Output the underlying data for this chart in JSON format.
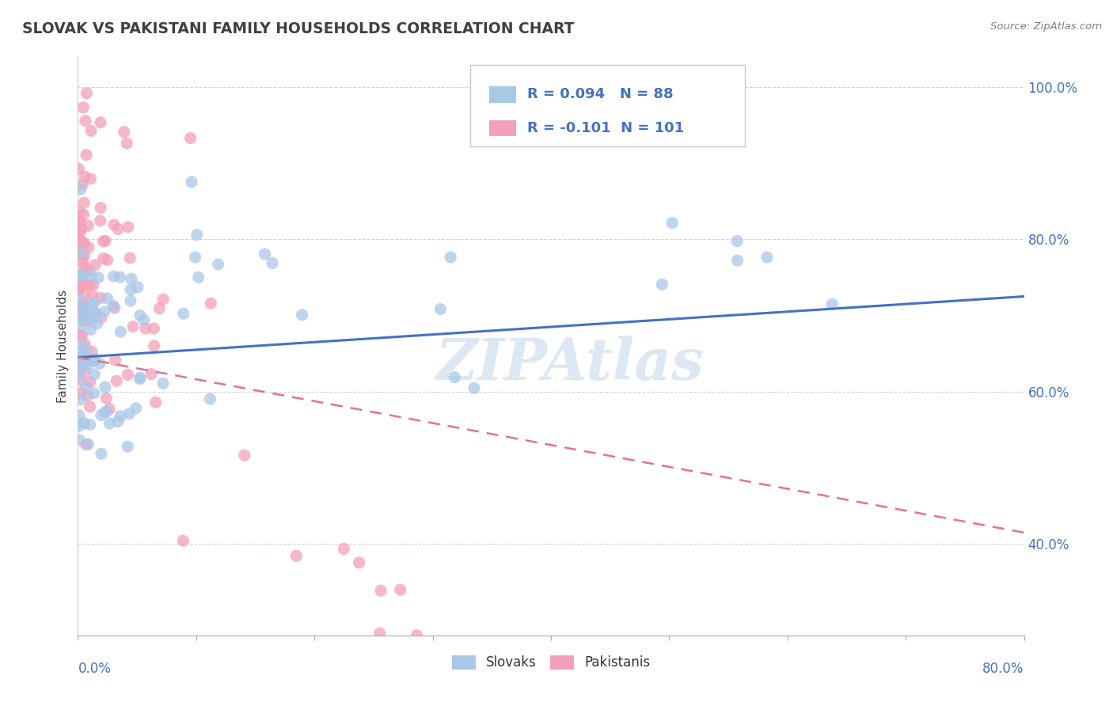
{
  "title": "SLOVAK VS PAKISTANI FAMILY HOUSEHOLDS CORRELATION CHART",
  "source": "Source: ZipAtlas.com",
  "ylabel": "Family Households",
  "xmin": 0.0,
  "xmax": 0.8,
  "ymin": 0.28,
  "ymax": 1.04,
  "yticks": [
    0.4,
    0.6,
    0.8,
    1.0
  ],
  "ytick_labels": [
    "40.0%",
    "60.0%",
    "80.0%",
    "100.0%"
  ],
  "slovak_R": 0.094,
  "slovak_N": 88,
  "pakistani_R": -0.101,
  "pakistani_N": 101,
  "slovak_color": "#a8c8e8",
  "slovak_line_color": "#4472c4",
  "pakistani_color": "#f4a0b8",
  "pakistani_line_color": "#e87090",
  "legend_text_color": "#4472c4",
  "tick_label_color": "#4472c4",
  "background_color": "#ffffff",
  "grid_color": "#c8d4e8",
  "watermark_color": "#dce8f4",
  "title_color": "#404040",
  "ylabel_color": "#404040",
  "source_color": "#808080",
  "sk_line_y0": 0.645,
  "sk_line_y1": 0.725,
  "pk_line_y0": 0.645,
  "pk_line_y1": 0.415
}
